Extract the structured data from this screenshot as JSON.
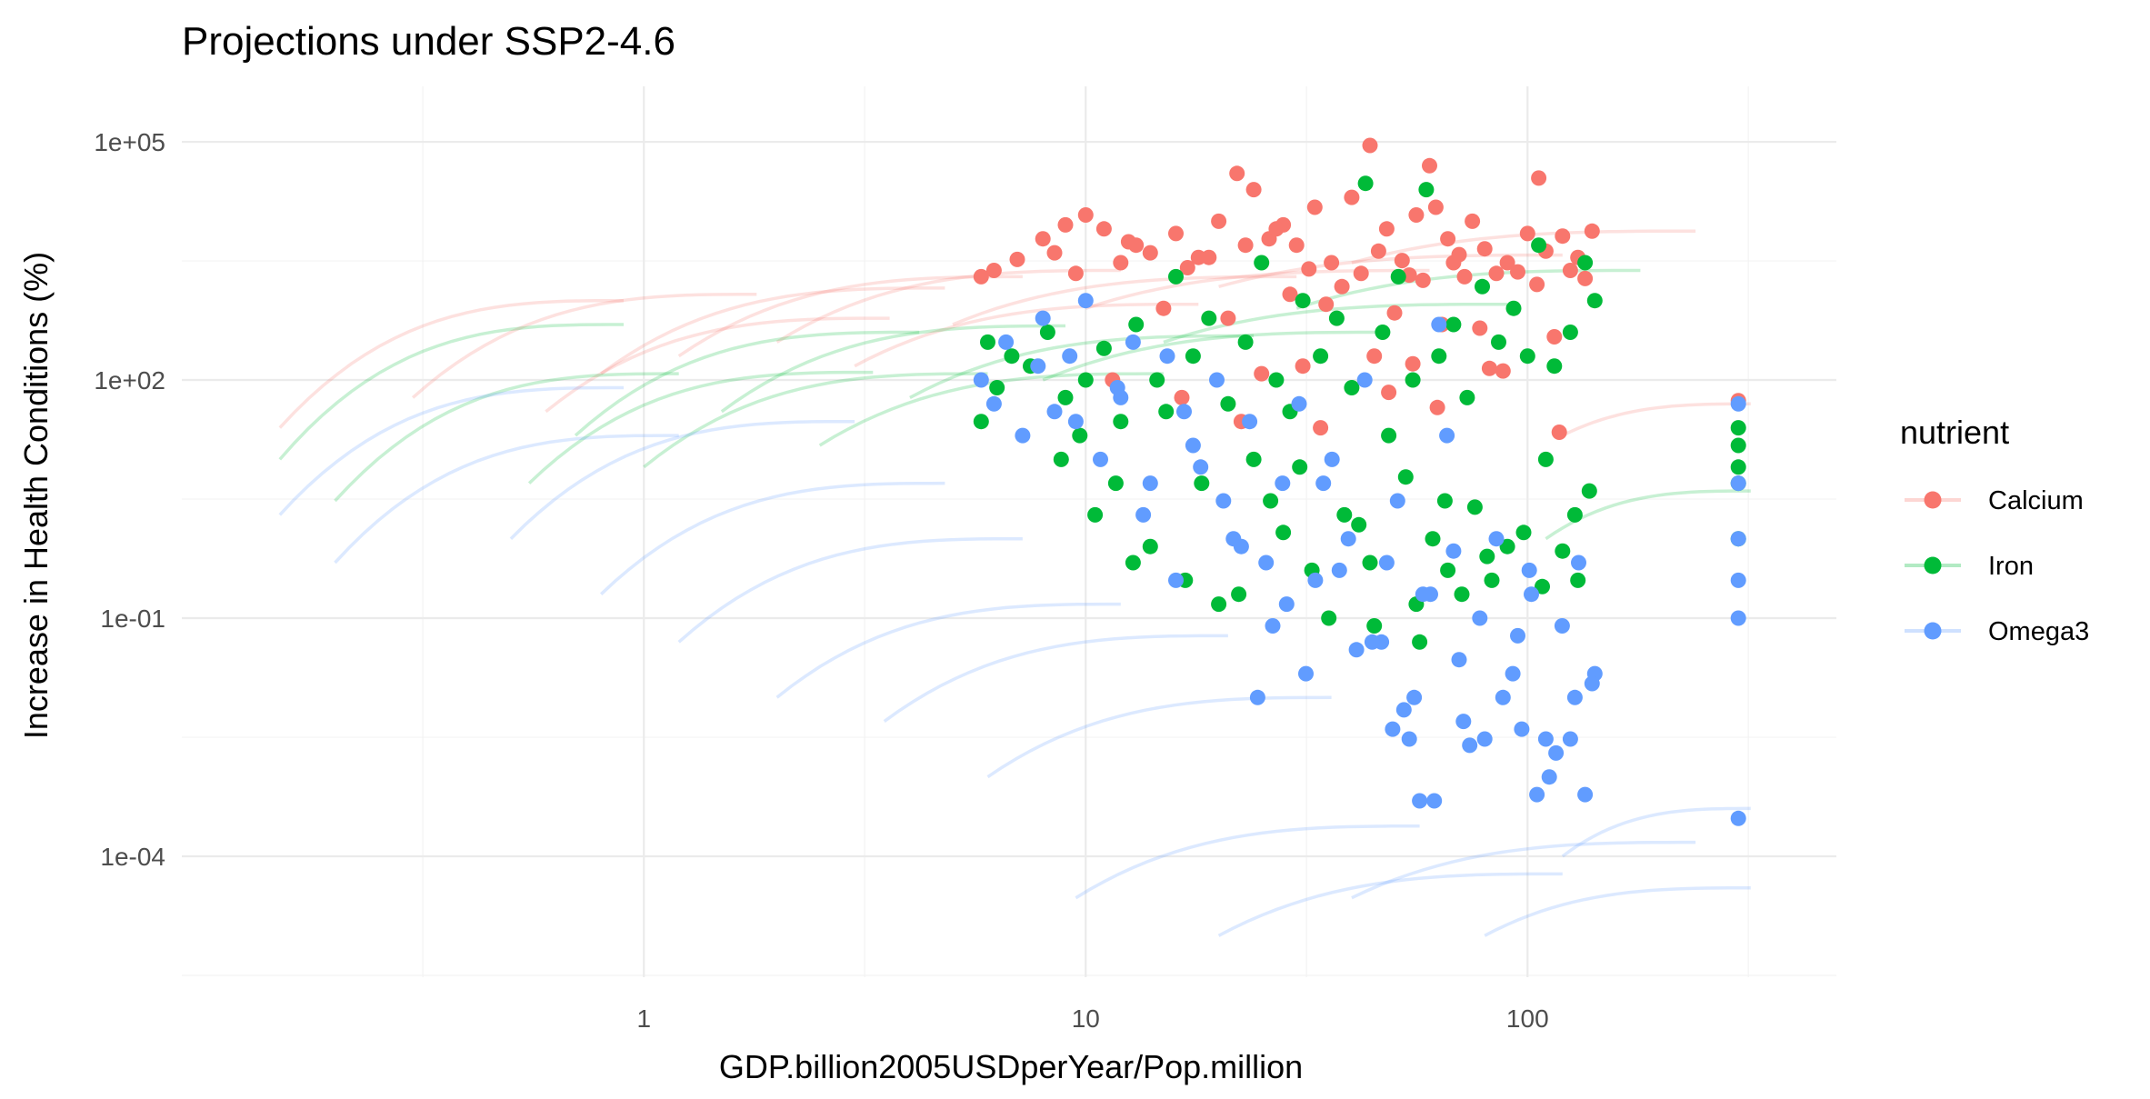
{
  "chart_data": {
    "type": "scatter",
    "title": "Projections under SSP2-4.6",
    "xlabel": "GDP.billion2005USDperYear/Pop.million",
    "ylabel": "Increase in Health Conditions (%)",
    "x_scale": "log10",
    "y_scale": "log10",
    "xlim": [
      0.09,
      500
    ],
    "ylim": [
      3e-06,
      500000
    ],
    "x_ticks": [
      {
        "value": 1,
        "label": "1"
      },
      {
        "value": 10,
        "label": "10"
      },
      {
        "value": 100,
        "label": "100"
      }
    ],
    "y_ticks": [
      {
        "value": 100000,
        "label": "1e+05"
      },
      {
        "value": 100,
        "label": "1e+02"
      },
      {
        "value": 0.1,
        "label": "1e-01"
      },
      {
        "value": 0.0001,
        "label": "1e-04"
      }
    ],
    "grid": true,
    "legend": {
      "title": "nutrient",
      "position": "right"
    },
    "series": [
      {
        "name": "Calcium",
        "color": "#F8766D",
        "marker_x": [
          5.8,
          6.2,
          7.0,
          8.0,
          9.0,
          10.0,
          11.0,
          12.5,
          14.0,
          16.0,
          18.0,
          20.0,
          22.0,
          24.0,
          26.0,
          28.0,
          30.0,
          33.0,
          36.0,
          40.0,
          44.0,
          48.0,
          52.0,
          56.0,
          60.0,
          62.0,
          66.0,
          70.0,
          75.0,
          80.0,
          90.0,
          100.0,
          106.0,
          110.0,
          120.0,
          130.0,
          140.0,
          300.0,
          8.5,
          12.0,
          17.0,
          23.0,
          32.0,
          46.0,
          54.0,
          68.0,
          85.0,
          95.0,
          125.0,
          9.5,
          13.0,
          19.0,
          27.0,
          38.0,
          42.0,
          58.0,
          72.0,
          105.0,
          135.0,
          15.0,
          21.0,
          29.0,
          35.0,
          50.0,
          64.0,
          78.0,
          115.0,
          25.0,
          31.0,
          45.0,
          55.0,
          82.0,
          11.5,
          16.5,
          22.5,
          34.0,
          48.5,
          62.5,
          88.0,
          118.0
        ],
        "marker_y": [
          2000,
          2400,
          3300,
          6000,
          9000,
          12000,
          8000,
          5500,
          4000,
          7000,
          3500,
          10000,
          40000,
          25000,
          6000,
          9000,
          5000,
          15000,
          3000,
          20000,
          90000,
          8000,
          3200,
          12000,
          50000,
          15000,
          6000,
          3800,
          10000,
          4500,
          3000,
          7000,
          35000,
          4200,
          6500,
          3500,
          7500,
          55,
          4000,
          3000,
          2600,
          5000,
          2500,
          4200,
          2100,
          3000,
          2200,
          2300,
          2400,
          2200,
          5000,
          3500,
          8000,
          1500,
          2200,
          1800,
          2000,
          1600,
          1900,
          800,
          600,
          1200,
          900,
          700,
          500,
          450,
          350,
          120,
          150,
          200,
          160,
          140,
          100,
          60,
          30,
          25,
          70,
          45,
          130,
          22
        ],
        "line_x_start": [
          0.15,
          0.3,
          0.6,
          0.8,
          1.2,
          2.0,
          3.0,
          5.0,
          10.0,
          20.0,
          40.0,
          120.0
        ],
        "line_y_start": [
          25,
          60,
          40,
          120,
          200,
          300,
          150,
          500,
          800,
          1500,
          3000,
          20
        ],
        "line_ratio": [
          40,
          20,
          15,
          12,
          10,
          8,
          6,
          4,
          3,
          2.5,
          2.5,
          2.5
        ]
      },
      {
        "name": "Iron",
        "color": "#00BA38",
        "marker_x": [
          5.8,
          6.0,
          6.3,
          6.8,
          7.5,
          8.2,
          9.0,
          10.0,
          11.0,
          12.0,
          13.0,
          14.5,
          16.0,
          17.5,
          19.0,
          21.0,
          23.0,
          25.0,
          27.0,
          29.0,
          31.0,
          34.0,
          37.0,
          40.0,
          43.0,
          47.0,
          51.0,
          55.0,
          59.0,
          63.0,
          68.0,
          73.0,
          79.0,
          86.0,
          93.0,
          100.0,
          106.0,
          115.0,
          125.0,
          135.0,
          142.0,
          300.0,
          300.0,
          300.0,
          300.0,
          300.0,
          8.8,
          10.5,
          12.8,
          15.2,
          18.3,
          22.2,
          26.2,
          30.5,
          35.5,
          41.5,
          48.5,
          57.0,
          66.0,
          76.0,
          90.0,
          110.0,
          130.0,
          9.7,
          14.0,
          20.0,
          24.0,
          32.5,
          38.5,
          45.0,
          53.0,
          61.0,
          71.0,
          83.0,
          98.0,
          120.0,
          138.0,
          11.7,
          16.8,
          28.0,
          44.0,
          56.0,
          65.0,
          81.0,
          108.0,
          128.0
        ],
        "marker_y": [
          30,
          300,
          80,
          200,
          150,
          400,
          60,
          100,
          250,
          30,
          500,
          100,
          2000,
          200,
          600,
          50,
          300,
          3000,
          100,
          40,
          1000,
          200,
          600,
          80,
          30000,
          400,
          2000,
          100,
          25000,
          200,
          500,
          60,
          1500,
          300,
          800,
          200,
          5000,
          150,
          400,
          3000,
          1000,
          25,
          1,
          5,
          15,
          8,
          10,
          2,
          0.5,
          40,
          5,
          0.2,
          3,
          8,
          0.1,
          1.5,
          20,
          0.05,
          0.4,
          2.5,
          0.8,
          10,
          0.3,
          20,
          0.8,
          0.15,
          10,
          0.4,
          2,
          0.08,
          6,
          1,
          0.2,
          0.3,
          1.2,
          0.7,
          4,
          5,
          0.3,
          1.2,
          0.5,
          0.15,
          3,
          0.6,
          0.25,
          2
        ],
        "line_x_start": [
          0.15,
          0.2,
          0.55,
          0.7,
          1.0,
          1.5,
          2.5,
          4.0,
          8.0,
          15.0,
          30.0,
          110.0
        ],
        "line_y_start": [
          10,
          3,
          5,
          20,
          8,
          40,
          15,
          60,
          100,
          300,
          800,
          1
        ],
        "line_ratio": [
          50,
          40,
          25,
          20,
          15,
          12,
          8,
          6,
          4,
          3,
          3,
          4
        ]
      },
      {
        "name": "Omega3",
        "color": "#619CFF",
        "marker_x": [
          5.8,
          6.2,
          6.6,
          7.2,
          7.8,
          8.5,
          9.2,
          10.0,
          10.8,
          11.8,
          12.8,
          14.0,
          15.3,
          16.7,
          18.2,
          19.8,
          21.6,
          23.5,
          25.6,
          27.9,
          30.4,
          33.1,
          36.1,
          39.3,
          42.8,
          46.7,
          50.8,
          55.4,
          60.3,
          65.7,
          71.6,
          78.0,
          85.0,
          92.6,
          100.9,
          110.0,
          119.8,
          130.5,
          142.0,
          300.0,
          300.0,
          300.0,
          300.0,
          300.0,
          300.0,
          9.5,
          13.5,
          17.5,
          22.5,
          28.5,
          34.5,
          41.0,
          48.0,
          52.5,
          58.0,
          63.0,
          70.0,
          80.0,
          95.0,
          105.0,
          125.0,
          135.0,
          8.0,
          12.0,
          16.0,
          20.5,
          26.5,
          31.5,
          37.5,
          44.5,
          54.0,
          57.0,
          68.0,
          88.0,
          102.0,
          116.0,
          140.0,
          24.5,
          49.5,
          61.5,
          74.0,
          97.0,
          112.0,
          128.0
        ],
        "marker_y": [
          100,
          50,
          300,
          20,
          150,
          40,
          200,
          1000,
          10,
          80,
          300,
          5,
          200,
          40,
          8,
          100,
          1,
          30,
          0.5,
          5,
          50,
          0.3,
          10,
          1,
          100,
          0.05,
          3,
          0.01,
          0.2,
          20,
          0.005,
          0.1,
          1,
          0.02,
          0.4,
          0.003,
          0.08,
          0.5,
          0.02,
          50,
          0.0003,
          5,
          0.3,
          0.1,
          1,
          30,
          2,
          15,
          0.8,
          0.15,
          5,
          0.04,
          0.5,
          0.007,
          0.2,
          500,
          0.03,
          0.003,
          0.06,
          0.0006,
          0.003,
          0.0006,
          600,
          60,
          0.3,
          3,
          0.08,
          0.02,
          0.4,
          0.05,
          0.003,
          0.0005,
          0.7,
          0.01,
          0.2,
          0.002,
          0.015,
          0.01,
          0.004,
          0.0005,
          0.0025,
          0.004,
          0.001,
          0.01
        ],
        "line_x_start": [
          0.15,
          0.2,
          0.5,
          0.8,
          1.2,
          2.0,
          3.5,
          6.0,
          9.5,
          20.0,
          40.0,
          80.0,
          120.0
        ],
        "line_y_start": [
          2,
          0.5,
          1,
          0.2,
          0.05,
          0.01,
          0.005,
          0.001,
          3e-05,
          1e-05,
          3e-05,
          1e-05,
          0.0001
        ],
        "line_ratio": [
          40,
          40,
          30,
          25,
          20,
          15,
          12,
          10,
          8,
          6,
          5,
          4,
          4
        ]
      }
    ]
  }
}
